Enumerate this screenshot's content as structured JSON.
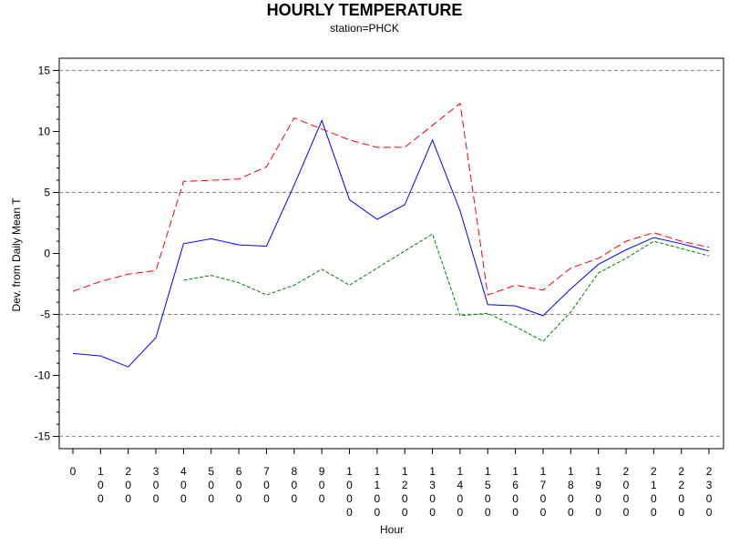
{
  "chart_data": {
    "type": "line",
    "title": "HOURLY TEMPERATURE",
    "subtitle": "station=PHCK",
    "xlabel": "Hour",
    "ylabel": "Dev. from Daily Mean T",
    "x": [
      "0",
      "100",
      "200",
      "300",
      "400",
      "500",
      "600",
      "700",
      "800",
      "900",
      "1000",
      "1100",
      "1200",
      "1300",
      "1400",
      "1500",
      "1600",
      "1700",
      "1800",
      "1900",
      "2000",
      "2100",
      "2200",
      "2300"
    ],
    "xlim": [
      0,
      2300
    ],
    "ylim": [
      -16,
      16
    ],
    "yticks": [
      -15,
      -10,
      -5,
      0,
      5,
      10,
      15
    ],
    "reference_lines": [
      -15,
      -5,
      5,
      15
    ],
    "grid": false,
    "legend": "none",
    "series": [
      {
        "color": "#0000ff",
        "style": "solid",
        "values": [
          -8.2,
          -8.4,
          -9.3,
          -6.9,
          0.8,
          1.2,
          0.7,
          0.6,
          5.6,
          10.9,
          4.4,
          2.8,
          4.0,
          9.3,
          3.5,
          -4.2,
          -4.3,
          -5.1,
          -2.9,
          -0.9,
          0.3,
          1.3,
          0.8,
          0.2
        ]
      },
      {
        "color": "#ff0000",
        "style": "dashed",
        "values": [
          -3.1,
          -2.3,
          -1.7,
          -1.4,
          5.9,
          6.0,
          6.1,
          7.1,
          11.1,
          10.2,
          9.3,
          8.7,
          8.7,
          10.5,
          12.3,
          -3.4,
          -2.6,
          -3.0,
          -1.2,
          -0.4,
          1.0,
          1.7,
          1.0,
          0.5
        ]
      },
      {
        "color": "#008000",
        "style": "dotted-dash",
        "values": [
          null,
          null,
          null,
          null,
          -2.2,
          -1.8,
          -2.4,
          -3.4,
          -2.6,
          -1.3,
          -2.6,
          -1.2,
          0.2,
          1.6,
          -5.1,
          -4.9,
          -6.0,
          -7.2,
          -4.8,
          -1.6,
          -0.4,
          1.0,
          0.4,
          -0.2
        ]
      }
    ]
  }
}
